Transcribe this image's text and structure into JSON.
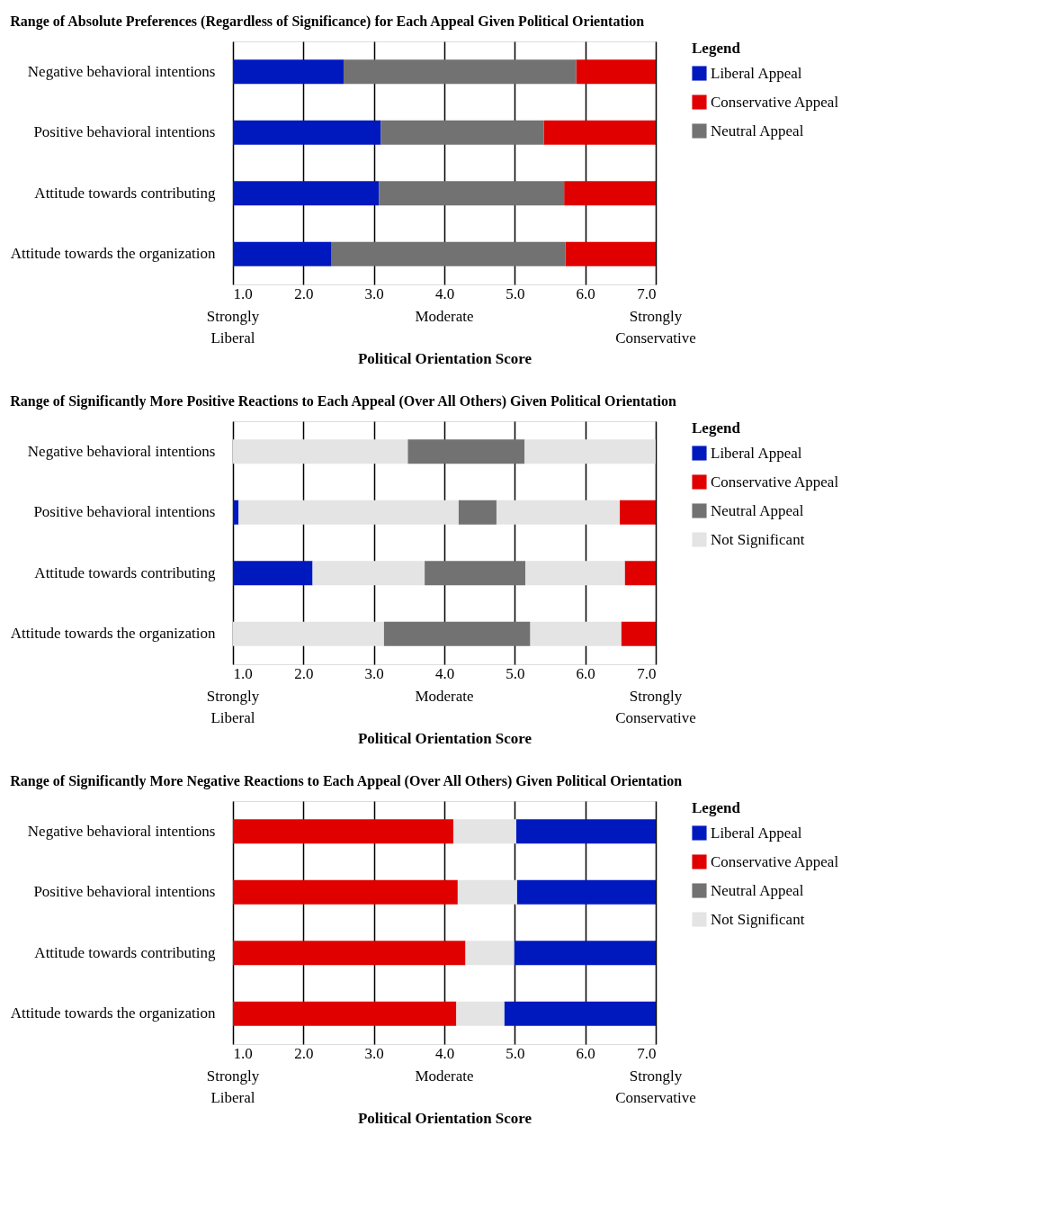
{
  "chart_data": [
    {
      "type": "bar",
      "orientation": "horizontal",
      "title": "Range of Absolute Preferences (Regardless of Significance) for Each Appeal Given Political Orientation",
      "xlabel": "Political Orientation  Score",
      "legend_title": "Legend",
      "legend": "right",
      "grid": "x",
      "xlim": [
        1,
        7
      ],
      "xticks": [
        {
          "value": 1,
          "label": "1.0"
        },
        {
          "value": 2,
          "label": "2.0"
        },
        {
          "value": 3,
          "label": "3.0"
        },
        {
          "value": 4,
          "label": "4.0"
        },
        {
          "value": 5,
          "label": "5.0"
        },
        {
          "value": 6,
          "label": "6.0"
        },
        {
          "value": 7,
          "label": "7.0"
        }
      ],
      "annotations": [
        "Strongly\nLiberal",
        "Moderate",
        "Strongly\nConservative"
      ],
      "categories": [
        "Negative behavioral intentions",
        "Positive behavioral intentions",
        "Attitude towards contributing",
        "Attitude towards the organization"
      ],
      "series": [
        {
          "name": "Liberal Appeal",
          "color": "#0019bf",
          "base": [
            1,
            1,
            1,
            1
          ],
          "values": [
            1.57,
            2.1,
            2.07,
            1.4
          ]
        },
        {
          "name": "Conservative Appeal",
          "color": "#e00000",
          "base": [
            5.87,
            5.41,
            5.7,
            5.72
          ],
          "values": [
            1.13,
            1.59,
            1.3,
            1.28
          ]
        },
        {
          "name": "Neutral Appeal",
          "color": "#727272",
          "base": [
            2.57,
            3.1,
            3.07,
            2.4
          ],
          "values": [
            3.3,
            2.31,
            2.63,
            3.32
          ]
        }
      ]
    },
    {
      "type": "bar",
      "orientation": "horizontal",
      "title": "Range of Significantly More Positive Reactions to Each Appeal (Over All Others) Given Political Orientation",
      "xlabel": "Political Orientation  Score",
      "legend_title": "Legend",
      "legend": "right",
      "grid": "x",
      "xlim": [
        1,
        7
      ],
      "xticks": [
        {
          "value": 1,
          "label": "1.0"
        },
        {
          "value": 2,
          "label": "2.0"
        },
        {
          "value": 3,
          "label": "3.0"
        },
        {
          "value": 4,
          "label": "4.0"
        },
        {
          "value": 5,
          "label": "5.0"
        },
        {
          "value": 6,
          "label": "6.0"
        },
        {
          "value": 7,
          "label": "7.0"
        }
      ],
      "annotations": [
        "Strongly\nLiberal",
        "Moderate",
        "Strongly\nConservative"
      ],
      "categories": [
        "Negative behavioral intentions",
        "Positive behavioral intentions",
        "Attitude towards contributing",
        "Attitude towards the organization"
      ],
      "series": [
        {
          "name": "Liberal Appeal",
          "color": "#0019bf",
          "base": [
            null,
            1,
            1,
            null
          ],
          "values": [
            null,
            0.08,
            1.13,
            null
          ]
        },
        {
          "name": "Conservative Appeal",
          "color": "#e00000",
          "base": [
            null,
            6.49,
            6.56,
            6.51
          ],
          "values": [
            null,
            0.51,
            0.44,
            0.49
          ]
        },
        {
          "name": "Neutral Appeal",
          "color": "#727272",
          "base": [
            3.48,
            4.2,
            3.72,
            3.14
          ],
          "values": [
            1.66,
            0.54,
            1.43,
            2.08
          ]
        },
        {
          "name": "Not Significant",
          "color": "#e4e4e4",
          "base": [
            1,
            1.08,
            2.13,
            1
          ],
          "values": [
            2.48,
            3.12,
            1.59,
            2.14
          ]
        },
        {
          "color": "#e4e4e4",
          "base": [
            5.14,
            4.74,
            5.15,
            5.22
          ],
          "values": [
            1.86,
            1.75,
            1.41,
            1.29
          ]
        }
      ]
    },
    {
      "type": "bar",
      "orientation": "horizontal",
      "title": "Range of Significantly More Negative Reactions to Each Appeal (Over All Others) Given Political Orientation",
      "xlabel": "Political Orientation  Score",
      "legend_title": "Legend",
      "legend": "right",
      "grid": "x",
      "xlim": [
        1,
        7
      ],
      "xticks": [
        {
          "value": 1,
          "label": "1.0"
        },
        {
          "value": 2,
          "label": "2.0"
        },
        {
          "value": 3,
          "label": "3.0"
        },
        {
          "value": 4,
          "label": "4.0"
        },
        {
          "value": 5,
          "label": "5.0"
        },
        {
          "value": 6,
          "label": "6.0"
        },
        {
          "value": 7,
          "label": "7.0"
        }
      ],
      "annotations": [
        "Strongly\nLiberal",
        "Moderate",
        "Strongly\nConservative"
      ],
      "categories": [
        "Negative behavioral intentions",
        "Positive behavioral intentions",
        "Attitude towards contributing",
        "Attitude towards the organization"
      ],
      "series": [
        {
          "name": "Liberal Appeal",
          "color": "#0019bf",
          "base": [
            5.02,
            5.03,
            4.99,
            4.85
          ],
          "values": [
            1.98,
            1.97,
            2.01,
            2.15
          ]
        },
        {
          "name": "Conservative Appeal",
          "color": "#e00000",
          "base": [
            1,
            1,
            1,
            1
          ],
          "values": [
            3.13,
            3.19,
            3.3,
            3.17
          ]
        },
        {
          "name": "Neutral Appeal",
          "color": "#727272",
          "base": [
            null,
            null,
            null,
            null
          ],
          "values": [
            null,
            null,
            null,
            null
          ]
        },
        {
          "name": "Not Significant",
          "color": "#e4e4e4",
          "base": [
            4.13,
            4.19,
            4.3,
            4.17
          ],
          "values": [
            0.89,
            0.84,
            0.69,
            0.68
          ]
        }
      ]
    }
  ]
}
